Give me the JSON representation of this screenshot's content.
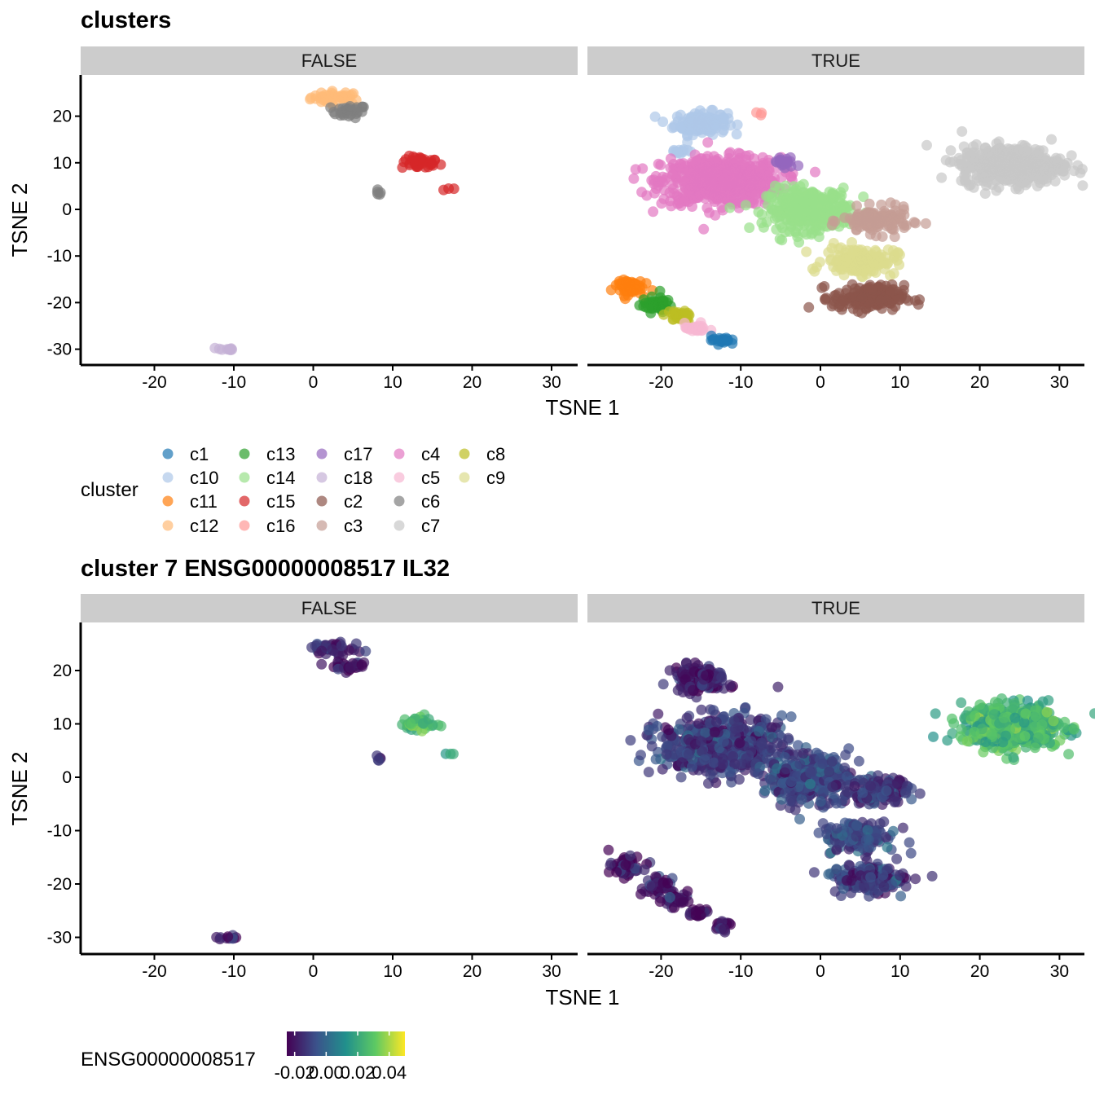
{
  "chart_data": [
    {
      "type": "scatter",
      "title": "clusters",
      "xlabel": "TSNE 1",
      "ylabel": "TSNE 2",
      "facets": [
        "FALSE",
        "TRUE"
      ],
      "xlim": [
        -29,
        34
      ],
      "ylim": [
        -33,
        29
      ],
      "xticks": [
        -20,
        -10,
        0,
        10,
        20,
        30
      ],
      "yticks": [
        20,
        10,
        0,
        -10,
        -20,
        -30
      ],
      "legend": {
        "title": "cluster",
        "position": "bottom",
        "items": [
          {
            "label": "c1",
            "color": "#1f77b4"
          },
          {
            "label": "c10",
            "color": "#aec7e8"
          },
          {
            "label": "c11",
            "color": "#ff7f0e"
          },
          {
            "label": "c12",
            "color": "#ffbb78"
          },
          {
            "label": "c13",
            "color": "#2ca02c"
          },
          {
            "label": "c14",
            "color": "#98df8a"
          },
          {
            "label": "c15",
            "color": "#d62728"
          },
          {
            "label": "c16",
            "color": "#ff9896"
          },
          {
            "label": "c17",
            "color": "#9467bd"
          },
          {
            "label": "c18",
            "color": "#c5b0d5"
          },
          {
            "label": "c2",
            "color": "#8c564b"
          },
          {
            "label": "c3",
            "color": "#c49c94"
          },
          {
            "label": "c4",
            "color": "#e377c2"
          },
          {
            "label": "c5",
            "color": "#f7b6d2"
          },
          {
            "label": "c6",
            "color": "#7f7f7f"
          },
          {
            "label": "c7",
            "color": "#c7c7c7"
          },
          {
            "label": "c8",
            "color": "#bcbd22"
          },
          {
            "label": "c9",
            "color": "#dbdb8d"
          }
        ]
      },
      "clusters": [
        {
          "facet": "FALSE",
          "cluster": "c12",
          "cx": 3,
          "cy": 24,
          "sx": 2.2,
          "sy": 0.9,
          "n": 40
        },
        {
          "facet": "FALSE",
          "cluster": "c6",
          "cx": 4.5,
          "cy": 21,
          "sx": 1.5,
          "sy": 0.9,
          "n": 28
        },
        {
          "facet": "FALSE",
          "cluster": "c6",
          "cx": 8.2,
          "cy": 3.5,
          "sx": 0.2,
          "sy": 0.4,
          "n": 5
        },
        {
          "facet": "FALSE",
          "cluster": "c15",
          "cx": 13.5,
          "cy": 10,
          "sx": 1.6,
          "sy": 0.9,
          "n": 40
        },
        {
          "facet": "FALSE",
          "cluster": "c15",
          "cx": 17,
          "cy": 4.5,
          "sx": 0.5,
          "sy": 0.3,
          "n": 3
        },
        {
          "facet": "FALSE",
          "cluster": "c18",
          "cx": -11,
          "cy": -30,
          "sx": 0.8,
          "sy": 0.3,
          "n": 10
        },
        {
          "facet": "TRUE",
          "cluster": "c10",
          "cx": -15,
          "cy": 18.5,
          "sx": 2.2,
          "sy": 1.6,
          "n": 140
        },
        {
          "facet": "TRUE",
          "cluster": "c10",
          "cx": -17.5,
          "cy": 12.5,
          "sx": 1.2,
          "sy": 0.6,
          "n": 12
        },
        {
          "facet": "TRUE",
          "cluster": "c16",
          "cx": -7.5,
          "cy": 20.5,
          "sx": 0.4,
          "sy": 0.3,
          "n": 3
        },
        {
          "facet": "TRUE",
          "cluster": "c4",
          "cx": -12.5,
          "cy": 6,
          "sx": 5,
          "sy": 3.4,
          "n": 600
        },
        {
          "facet": "TRUE",
          "cluster": "c17",
          "cx": -4.5,
          "cy": 10,
          "sx": 1,
          "sy": 0.9,
          "n": 20
        },
        {
          "facet": "TRUE",
          "cluster": "c14",
          "cx": -1.5,
          "cy": 0,
          "sx": 3.5,
          "sy": 3,
          "n": 320
        },
        {
          "facet": "TRUE",
          "cluster": "c3",
          "cx": 7,
          "cy": -2.5,
          "sx": 2.8,
          "sy": 1.8,
          "n": 130
        },
        {
          "facet": "TRUE",
          "cluster": "c9",
          "cx": 5,
          "cy": -11,
          "sx": 3,
          "sy": 2,
          "n": 140
        },
        {
          "facet": "TRUE",
          "cluster": "c2",
          "cx": 6,
          "cy": -19,
          "sx": 3,
          "sy": 1.8,
          "n": 170
        },
        {
          "facet": "TRUE",
          "cluster": "c7",
          "cx": 24,
          "cy": 9.5,
          "sx": 4.2,
          "sy": 2.7,
          "n": 520
        },
        {
          "facet": "TRUE",
          "cluster": "c11",
          "cx": -24.3,
          "cy": -16.5,
          "sx": 1.3,
          "sy": 1.2,
          "n": 60
        },
        {
          "facet": "TRUE",
          "cluster": "c13",
          "cx": -20.5,
          "cy": -20.5,
          "sx": 1.3,
          "sy": 1.1,
          "n": 45
        },
        {
          "facet": "TRUE",
          "cluster": "c8",
          "cx": -18,
          "cy": -23,
          "sx": 1.2,
          "sy": 0.8,
          "n": 30
        },
        {
          "facet": "TRUE",
          "cluster": "c5",
          "cx": -15.5,
          "cy": -25.5,
          "sx": 1,
          "sy": 0.7,
          "n": 22
        },
        {
          "facet": "TRUE",
          "cluster": "c1",
          "cx": -12.5,
          "cy": -28,
          "sx": 0.8,
          "sy": 0.6,
          "n": 20
        }
      ]
    },
    {
      "type": "scatter",
      "title": "cluster 7 ENSG00000008517 IL32",
      "xlabel": "TSNE 1",
      "ylabel": "TSNE 2",
      "facets": [
        "FALSE",
        "TRUE"
      ],
      "xlim": [
        -29,
        34
      ],
      "ylim": [
        -33,
        29
      ],
      "xticks": [
        -20,
        -10,
        0,
        10,
        20,
        30
      ],
      "yticks": [
        20,
        10,
        0,
        -10,
        -20,
        -30
      ],
      "legend": {
        "title": "ENSG00000008517",
        "position": "bottom",
        "type": "colorbar",
        "range": [
          -0.025,
          0.05
        ],
        "ticks": [
          "-0.02",
          "0.00",
          "0.02",
          "0.04"
        ],
        "tick_values": [
          -0.02,
          0.0,
          0.02,
          0.04
        ],
        "colors": [
          "#440154",
          "#3b528b",
          "#21908c",
          "#5dc963",
          "#fde725"
        ]
      },
      "clusters": [
        {
          "facet": "FALSE",
          "cx": 3,
          "cy": 24,
          "sx": 2.2,
          "sy": 0.9,
          "n": 40,
          "value": -0.015
        },
        {
          "facet": "FALSE",
          "cx": 4.5,
          "cy": 21,
          "sx": 1.5,
          "sy": 0.9,
          "n": 28,
          "value": -0.02
        },
        {
          "facet": "FALSE",
          "cx": 8.2,
          "cy": 3.5,
          "sx": 0.2,
          "sy": 0.4,
          "n": 5,
          "value": -0.012
        },
        {
          "facet": "FALSE",
          "cx": 13.5,
          "cy": 10,
          "sx": 1.6,
          "sy": 0.9,
          "n": 40,
          "value": 0.028
        },
        {
          "facet": "FALSE",
          "cx": 17,
          "cy": 4.5,
          "sx": 0.5,
          "sy": 0.3,
          "n": 3,
          "value": 0.018
        },
        {
          "facet": "FALSE",
          "cx": -11,
          "cy": -30,
          "sx": 0.8,
          "sy": 0.3,
          "n": 10,
          "value": -0.02
        },
        {
          "facet": "TRUE",
          "cx": -15,
          "cy": 18.5,
          "sx": 2.2,
          "sy": 1.6,
          "n": 140,
          "value": -0.02
        },
        {
          "facet": "TRUE",
          "cx": -12.5,
          "cy": 6,
          "sx": 5,
          "sy": 3.4,
          "n": 600,
          "value": -0.012
        },
        {
          "facet": "TRUE",
          "cx": -1.5,
          "cy": 0,
          "sx": 3.5,
          "sy": 3,
          "n": 320,
          "value": -0.01
        },
        {
          "facet": "TRUE",
          "cx": 7,
          "cy": -2.5,
          "sx": 2.8,
          "sy": 1.8,
          "n": 130,
          "value": -0.012
        },
        {
          "facet": "TRUE",
          "cx": 5,
          "cy": -11,
          "sx": 3,
          "sy": 2,
          "n": 140,
          "value": -0.008
        },
        {
          "facet": "TRUE",
          "cx": 6,
          "cy": -19,
          "sx": 3,
          "sy": 1.8,
          "n": 170,
          "value": -0.012
        },
        {
          "facet": "TRUE",
          "cx": 24,
          "cy": 9.5,
          "sx": 4.2,
          "sy": 2.7,
          "n": 520,
          "value": 0.025
        },
        {
          "facet": "TRUE",
          "cx": -24.3,
          "cy": -16.5,
          "sx": 1.3,
          "sy": 1.2,
          "n": 60,
          "value": -0.022
        },
        {
          "facet": "TRUE",
          "cx": -20.5,
          "cy": -20.5,
          "sx": 1.3,
          "sy": 1.1,
          "n": 45,
          "value": -0.018
        },
        {
          "facet": "TRUE",
          "cx": -18,
          "cy": -23,
          "sx": 1.2,
          "sy": 0.8,
          "n": 30,
          "value": -0.02
        },
        {
          "facet": "TRUE",
          "cx": -15.5,
          "cy": -25.5,
          "sx": 1,
          "sy": 0.7,
          "n": 22,
          "value": -0.022
        },
        {
          "facet": "TRUE",
          "cx": -12.5,
          "cy": -28,
          "sx": 0.8,
          "sy": 0.6,
          "n": 20,
          "value": -0.02
        }
      ]
    }
  ]
}
